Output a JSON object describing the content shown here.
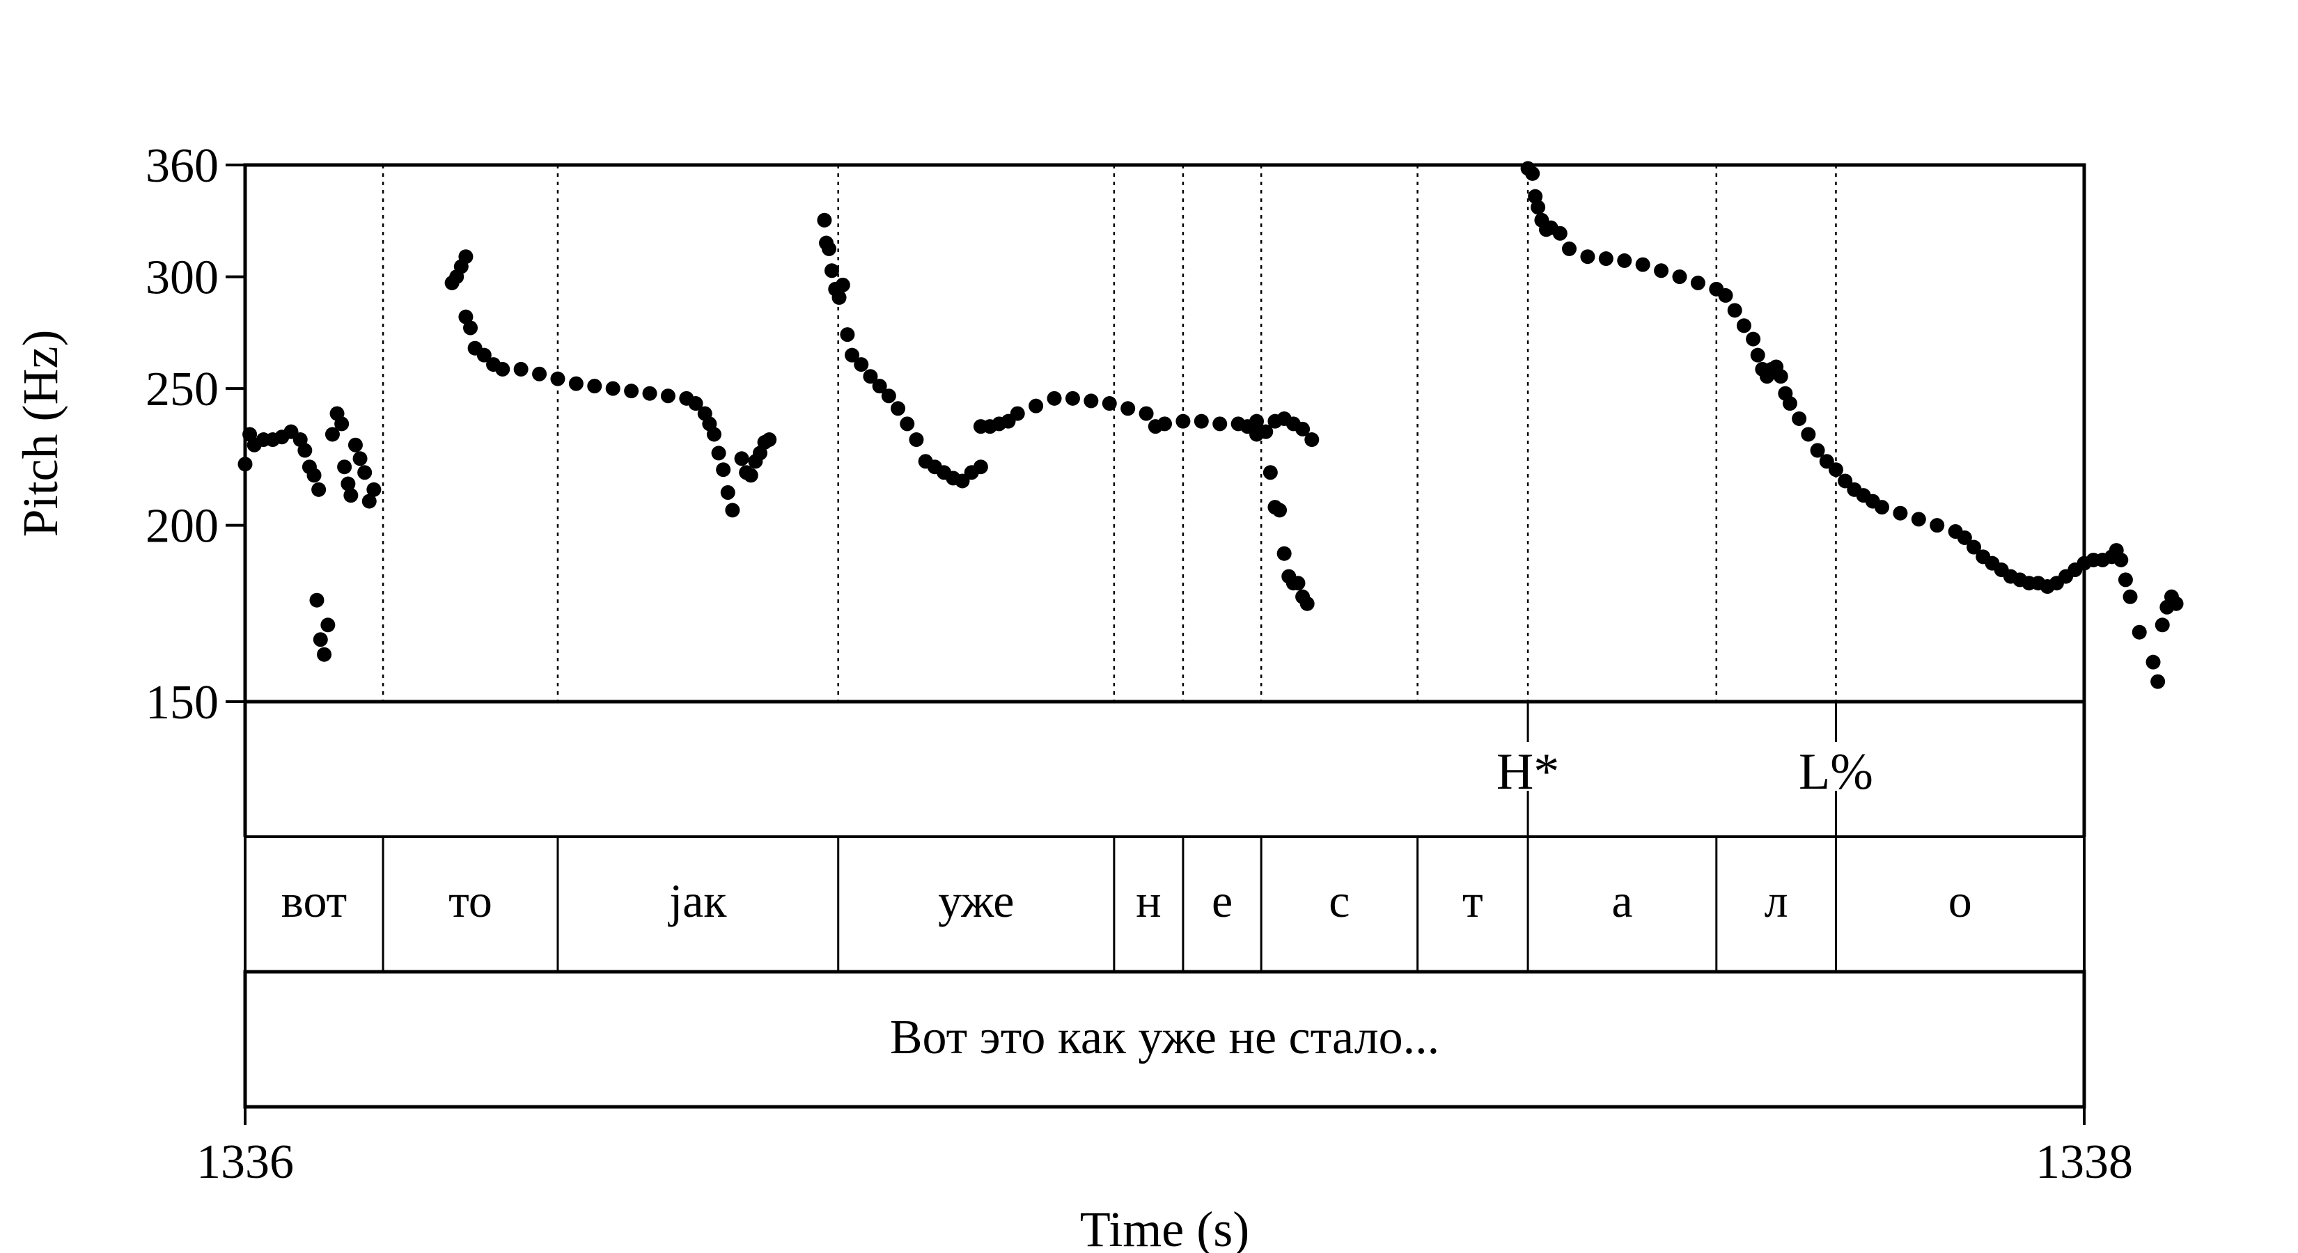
{
  "chart_data": {
    "type": "scatter",
    "title": "",
    "xlabel": "Time (s)",
    "ylabel": "Pitch (Hz)",
    "xlim": [
      1336,
      1338
    ],
    "ylim": [
      150,
      360
    ],
    "xticks": [
      "1336",
      "1338"
    ],
    "yticks": [
      150,
      200,
      250,
      300,
      360
    ],
    "y_scale": "log",
    "point_color": "#000000",
    "pitch_track": [
      [
        1336.0,
        221
      ],
      [
        1336.005,
        232
      ],
      [
        1336.01,
        228
      ],
      [
        1336.02,
        230
      ],
      [
        1336.03,
        230
      ],
      [
        1336.04,
        231
      ],
      [
        1336.05,
        233
      ],
      [
        1336.06,
        230
      ],
      [
        1336.065,
        226
      ],
      [
        1336.07,
        220
      ],
      [
        1336.075,
        217
      ],
      [
        1336.08,
        212
      ],
      [
        1336.078,
        177
      ],
      [
        1336.082,
        166
      ],
      [
        1336.086,
        162
      ],
      [
        1336.09,
        170
      ],
      [
        1336.095,
        232
      ],
      [
        1336.1,
        240
      ],
      [
        1336.105,
        236
      ],
      [
        1336.108,
        220
      ],
      [
        1336.112,
        214
      ],
      [
        1336.115,
        210
      ],
      [
        1336.12,
        228
      ],
      [
        1336.125,
        223
      ],
      [
        1336.13,
        218
      ],
      [
        1336.135,
        208
      ],
      [
        1336.14,
        212
      ],
      [
        1336.225,
        297
      ],
      [
        1336.23,
        300
      ],
      [
        1336.235,
        305
      ],
      [
        1336.24,
        310
      ],
      [
        1336.24,
        281
      ],
      [
        1336.245,
        276
      ],
      [
        1336.25,
        267
      ],
      [
        1336.26,
        264
      ],
      [
        1336.27,
        260
      ],
      [
        1336.28,
        258
      ],
      [
        1336.3,
        258
      ],
      [
        1336.32,
        256
      ],
      [
        1336.34,
        254
      ],
      [
        1336.36,
        252
      ],
      [
        1336.38,
        251
      ],
      [
        1336.4,
        250
      ],
      [
        1336.42,
        249
      ],
      [
        1336.44,
        248
      ],
      [
        1336.46,
        247
      ],
      [
        1336.48,
        246
      ],
      [
        1336.49,
        244
      ],
      [
        1336.5,
        240
      ],
      [
        1336.505,
        236
      ],
      [
        1336.51,
        232
      ],
      [
        1336.515,
        225
      ],
      [
        1336.52,
        219
      ],
      [
        1336.525,
        211
      ],
      [
        1336.53,
        205
      ],
      [
        1336.54,
        223
      ],
      [
        1336.545,
        218
      ],
      [
        1336.55,
        217
      ],
      [
        1336.555,
        222
      ],
      [
        1336.56,
        225
      ],
      [
        1336.565,
        229
      ],
      [
        1336.57,
        230
      ],
      [
        1336.63,
        329
      ],
      [
        1336.632,
        317
      ],
      [
        1336.635,
        314
      ],
      [
        1336.638,
        303
      ],
      [
        1336.642,
        294
      ],
      [
        1336.646,
        290
      ],
      [
        1336.65,
        296
      ],
      [
        1336.655,
        273
      ],
      [
        1336.66,
        264
      ],
      [
        1336.67,
        260
      ],
      [
        1336.68,
        255
      ],
      [
        1336.69,
        251
      ],
      [
        1336.7,
        247
      ],
      [
        1336.71,
        242
      ],
      [
        1336.72,
        236
      ],
      [
        1336.73,
        230
      ],
      [
        1336.74,
        222
      ],
      [
        1336.75,
        220
      ],
      [
        1336.76,
        218
      ],
      [
        1336.77,
        216
      ],
      [
        1336.78,
        215
      ],
      [
        1336.79,
        218
      ],
      [
        1336.8,
        220
      ],
      [
        1336.8,
        235
      ],
      [
        1336.81,
        235
      ],
      [
        1336.82,
        236
      ],
      [
        1336.83,
        237
      ],
      [
        1336.84,
        240
      ],
      [
        1336.86,
        243
      ],
      [
        1336.88,
        246
      ],
      [
        1336.9,
        246
      ],
      [
        1336.92,
        245
      ],
      [
        1336.94,
        244
      ],
      [
        1336.96,
        242
      ],
      [
        1336.98,
        240
      ],
      [
        1336.99,
        235
      ],
      [
        1337.0,
        236
      ],
      [
        1337.02,
        237
      ],
      [
        1337.04,
        237
      ],
      [
        1337.06,
        236
      ],
      [
        1337.08,
        236
      ],
      [
        1337.09,
        235
      ],
      [
        1337.1,
        237
      ],
      [
        1337.12,
        237
      ],
      [
        1337.13,
        238
      ],
      [
        1337.14,
        236
      ],
      [
        1337.15,
        234
      ],
      [
        1337.16,
        230
      ],
      [
        1337.1,
        232
      ],
      [
        1337.11,
        233
      ],
      [
        1337.115,
        218
      ],
      [
        1337.12,
        206
      ],
      [
        1337.125,
        205
      ],
      [
        1337.13,
        191
      ],
      [
        1337.135,
        184
      ],
      [
        1337.14,
        182
      ],
      [
        1337.145,
        182
      ],
      [
        1337.15,
        178
      ],
      [
        1337.155,
        176
      ],
      [
        1337.395,
        358
      ],
      [
        1337.4,
        355
      ],
      [
        1337.403,
        342
      ],
      [
        1337.406,
        336
      ],
      [
        1337.41,
        329
      ],
      [
        1337.415,
        324
      ],
      [
        1337.42,
        325
      ],
      [
        1337.43,
        322
      ],
      [
        1337.44,
        314
      ],
      [
        1337.46,
        310
      ],
      [
        1337.48,
        309
      ],
      [
        1337.5,
        308
      ],
      [
        1337.52,
        306
      ],
      [
        1337.54,
        303
      ],
      [
        1337.56,
        300
      ],
      [
        1337.58,
        297
      ],
      [
        1337.6,
        294
      ],
      [
        1337.61,
        291
      ],
      [
        1337.62,
        284
      ],
      [
        1337.63,
        277
      ],
      [
        1337.64,
        271
      ],
      [
        1337.645,
        264
      ],
      [
        1337.65,
        258
      ],
      [
        1337.655,
        255
      ],
      [
        1337.66,
        258
      ],
      [
        1337.665,
        259
      ],
      [
        1337.67,
        255
      ],
      [
        1337.675,
        248
      ],
      [
        1337.68,
        244
      ],
      [
        1337.69,
        238
      ],
      [
        1337.7,
        232
      ],
      [
        1337.71,
        226
      ],
      [
        1337.72,
        222
      ],
      [
        1337.73,
        219
      ],
      [
        1337.74,
        215
      ],
      [
        1337.75,
        212
      ],
      [
        1337.76,
        210
      ],
      [
        1337.77,
        208
      ],
      [
        1337.78,
        206
      ],
      [
        1337.8,
        204
      ],
      [
        1337.82,
        202
      ],
      [
        1337.84,
        200
      ],
      [
        1337.86,
        198
      ],
      [
        1337.87,
        196
      ],
      [
        1337.88,
        193
      ],
      [
        1337.89,
        190
      ],
      [
        1337.9,
        188
      ],
      [
        1337.91,
        186
      ],
      [
        1337.92,
        184
      ],
      [
        1337.93,
        183
      ],
      [
        1337.94,
        182
      ],
      [
        1337.95,
        182
      ],
      [
        1337.96,
        181
      ],
      [
        1337.97,
        182
      ],
      [
        1337.98,
        184
      ],
      [
        1337.99,
        186
      ],
      [
        1338.0,
        188
      ],
      [
        1338.01,
        189
      ],
      [
        1338.02,
        189
      ],
      [
        1338.03,
        190
      ],
      [
        1338.035,
        192
      ],
      [
        1338.04,
        189
      ],
      [
        1338.045,
        183
      ],
      [
        1338.05,
        178
      ],
      [
        1338.06,
        168
      ],
      [
        1338.075,
        160
      ],
      [
        1338.08,
        155
      ],
      [
        1338.085,
        170
      ],
      [
        1338.09,
        175
      ],
      [
        1338.095,
        178
      ],
      [
        1338.1,
        176
      ]
    ],
    "segment_boundaries": [
      1336.15,
      1336.34,
      1336.645,
      1336.945,
      1337.02,
      1337.105,
      1337.275,
      1337.395,
      1337.6,
      1337.73
    ],
    "segments": [
      {
        "label": "вот",
        "start": 1336.0,
        "end": 1336.15
      },
      {
        "label": "то",
        "start": 1336.15,
        "end": 1336.34
      },
      {
        "label": "јак",
        "start": 1336.34,
        "end": 1336.645
      },
      {
        "label": "уже",
        "start": 1336.645,
        "end": 1336.945
      },
      {
        "label": "н",
        "start": 1336.945,
        "end": 1337.02
      },
      {
        "label": "е",
        "start": 1337.02,
        "end": 1337.105
      },
      {
        "label": "с",
        "start": 1337.105,
        "end": 1337.275
      },
      {
        "label": "т",
        "start": 1337.275,
        "end": 1337.395
      },
      {
        "label": "а",
        "start": 1337.395,
        "end": 1337.6
      },
      {
        "label": "л",
        "start": 1337.6,
        "end": 1337.73
      },
      {
        "label": "о",
        "start": 1337.73,
        "end": 1338.0
      }
    ],
    "tones": [
      {
        "label": "H*",
        "time": 1337.395
      },
      {
        "label": "L%",
        "time": 1337.73
      }
    ],
    "sentence": "Вот это как уже не стало..."
  }
}
